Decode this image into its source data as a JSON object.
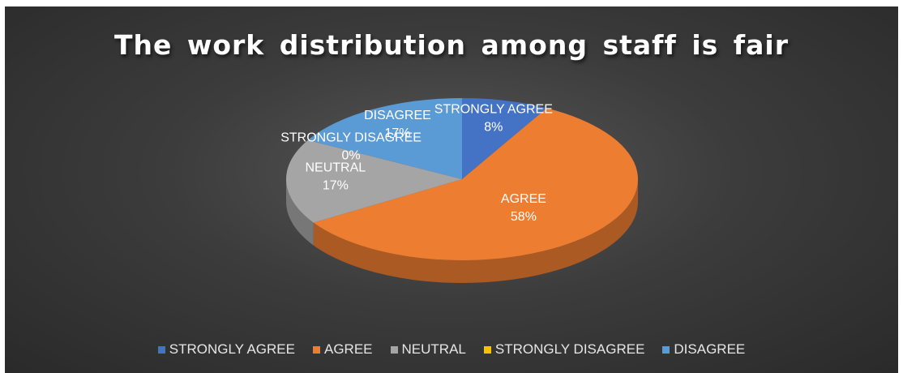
{
  "chart_data": {
    "type": "pie",
    "title": "The work distribution among staff is fair",
    "categories": [
      "STRONGLY AGREE",
      "AGREE",
      "NEUTRAL",
      "STRONGLY DISAGREE",
      "DISAGREE"
    ],
    "values": [
      8,
      58,
      17,
      0,
      17
    ],
    "value_labels": [
      "8%",
      "58%",
      "17%",
      "0%",
      "17%"
    ],
    "colors": [
      "#4472C4",
      "#ED7D31",
      "#A5A5A5",
      "#FFC000",
      "#5B9BD5"
    ],
    "legend_placement": "bottom",
    "three_d": true
  }
}
